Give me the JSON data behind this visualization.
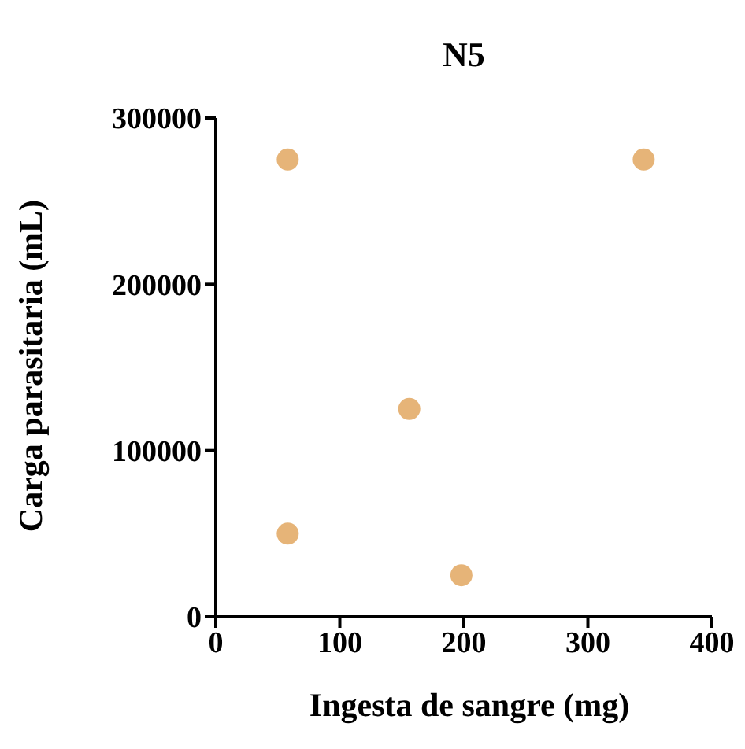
{
  "chart_data": {
    "type": "scatter",
    "title": "N5",
    "xlabel": "Ingesta de sangre (mg)",
    "ylabel": "Carga parasitaria (mL)",
    "x": [
      58,
      345,
      156,
      58,
      198
    ],
    "values": [
      275000,
      275000,
      125000,
      50000,
      25000
    ],
    "color": "#e6b478",
    "marker": "circle",
    "grid": false,
    "legend": false,
    "xlim": [
      0,
      400
    ],
    "xticks": [
      0,
      100,
      200,
      300,
      400
    ],
    "ylim": [
      0,
      300000
    ],
    "yticks": [
      0,
      100000,
      200000,
      300000
    ]
  }
}
